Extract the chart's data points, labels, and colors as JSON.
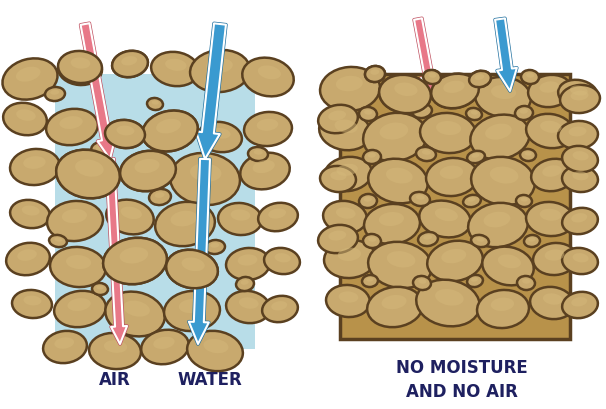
{
  "bg_color": "#ffffff",
  "left_bg_color": "#b8dde8",
  "stone_fill": "#c8a96e",
  "stone_highlight": "#d4b87a",
  "stone_shadow": "#a8893e",
  "stone_edge": "#5a4020",
  "air_arrow_color": "#e87888",
  "air_arrow_edge": "#c05060",
  "water_arrow_color": "#3a9ad0",
  "water_arrow_edge": "#2070a0",
  "label_color": "#1e2060",
  "label_air": "AIR",
  "label_water": "WATER",
  "label_right": "NO MOISTURE\nAND NO AIR",
  "label_fontsize": 12,
  "right_bg_color": "#b8924a",
  "white": "#ffffff"
}
